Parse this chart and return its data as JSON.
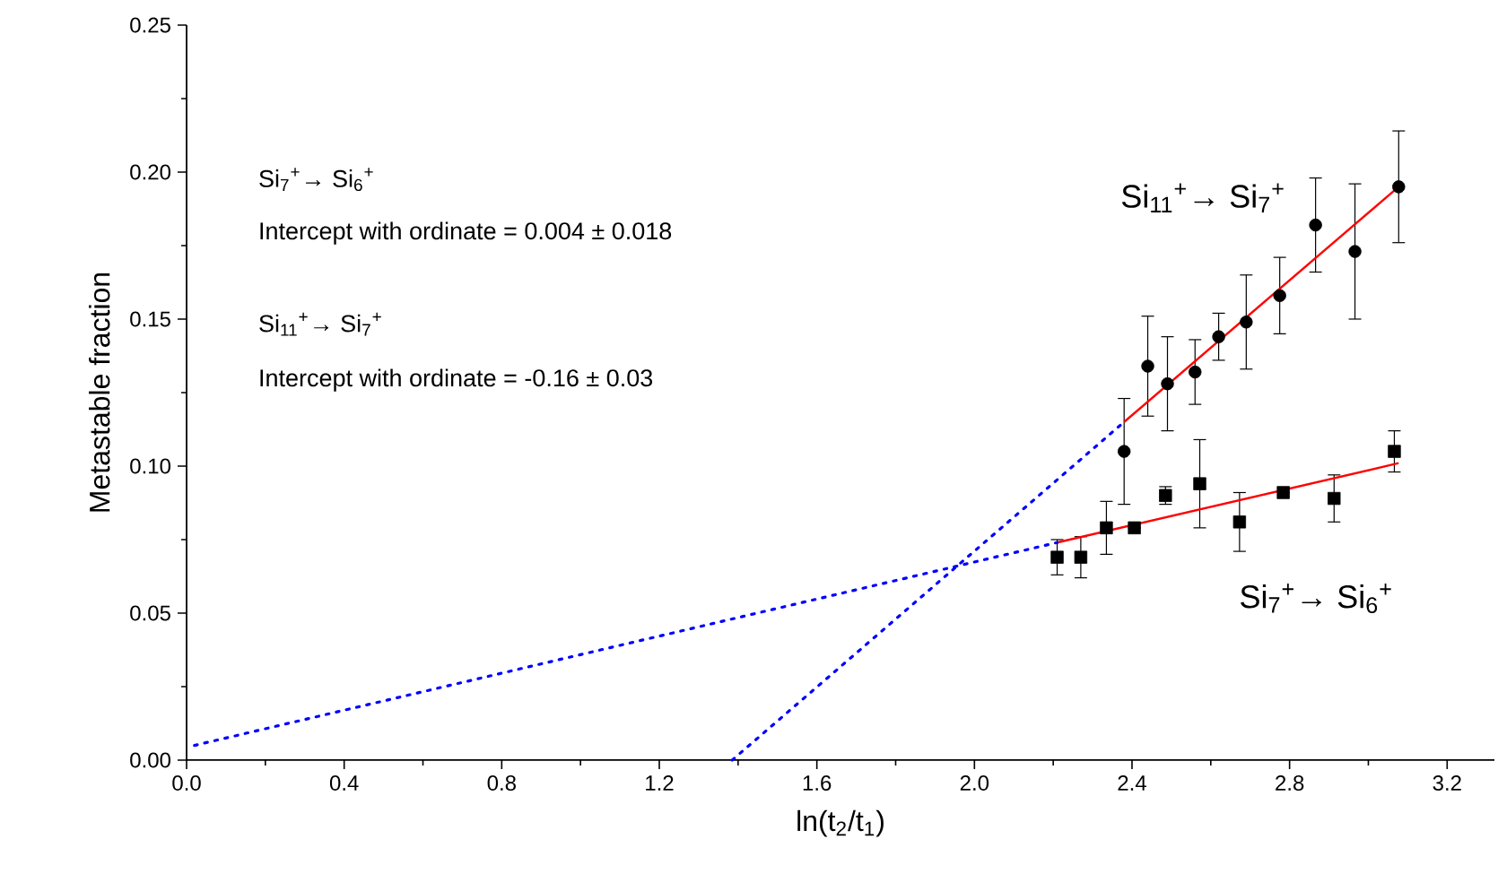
{
  "chart_data": {
    "type": "scatter",
    "xlabel": "ln(t$_{2}$/t$_{1}$)",
    "ylabel": "Metastable fraction",
    "xlim": [
      0,
      3.32
    ],
    "ylim": [
      0,
      0.25
    ],
    "xticks": [
      {
        "value": 0,
        "label": "0.0"
      },
      {
        "value": 0.4,
        "label": "0.4"
      },
      {
        "value": 0.8,
        "label": "0.8"
      },
      {
        "value": 1.2,
        "label": "1.2"
      },
      {
        "value": 1.6,
        "label": "1.6"
      },
      {
        "value": 2.0,
        "label": "2.0"
      },
      {
        "value": 2.4,
        "label": "2.4"
      },
      {
        "value": 2.8,
        "label": "2.8"
      },
      {
        "value": 3.2,
        "label": "3.2"
      }
    ],
    "yticks": [
      {
        "value": 0,
        "label": "0.00"
      },
      {
        "value": 0.05,
        "label": "0.05"
      },
      {
        "value": 0.1,
        "label": "0.10"
      },
      {
        "value": 0.15,
        "label": "0.15"
      },
      {
        "value": 0.2,
        "label": "0.20"
      },
      {
        "value": 0.25,
        "label": "0.25"
      }
    ],
    "grid": false,
    "annotations": [
      "Si$_{7}$$^{+}$→ Si$_{6}$$^{+}$",
      "Intercept with ordinate = 0.004 ± 0.018",
      "Si$_{11}$$^{+}$→ Si$_{7}$$^{+}$",
      "Intercept with ordinate = -0.16 ± 0.03"
    ],
    "series": [
      {
        "name": "Si$_{11}$$^{+}$→ Si$_{7}$$^{+}$",
        "marker": "circle",
        "color": "#000000",
        "x": [
          2.38,
          2.44,
          2.49,
          2.56,
          2.62,
          2.69,
          2.775,
          2.866,
          2.966,
          3.077
        ],
        "values": [
          0.105,
          0.134,
          0.128,
          0.132,
          0.144,
          0.149,
          0.158,
          0.182,
          0.173,
          0.195
        ],
        "errors": [
          0.018,
          0.017,
          0.016,
          0.011,
          0.008,
          0.016,
          0.013,
          0.016,
          0.023,
          0.019
        ]
      },
      {
        "name": "Si$_{7}$$^{+}$→ Si$_{6}$$^{+}$",
        "marker": "square",
        "color": "#000000",
        "x": [
          2.21,
          2.27,
          2.335,
          2.406,
          2.485,
          2.572,
          2.673,
          2.784,
          2.913,
          3.066
        ],
        "values": [
          0.069,
          0.069,
          0.079,
          0.079,
          0.09,
          0.094,
          0.081,
          0.091,
          0.089,
          0.105
        ],
        "errors": [
          0.006,
          0.007,
          0.009,
          null,
          0.003,
          0.015,
          0.01,
          null,
          0.008,
          0.007
        ]
      },
      {
        "type": "line",
        "line_style": "solid",
        "color": "#ff0000",
        "x": [
          2.38,
          3.077
        ],
        "values": [
          0.115,
          0.195
        ]
      },
      {
        "type": "line",
        "line_style": "dotted",
        "color": "#0000ff",
        "x": [
          1.385,
          2.38
        ],
        "values": [
          0,
          0.115
        ]
      },
      {
        "type": "line",
        "line_style": "solid",
        "color": "#ff0000",
        "x": [
          2.21,
          3.077
        ],
        "values": [
          0.074,
          0.101
        ]
      },
      {
        "type": "line",
        "line_style": "dotted",
        "color": "#0000ff",
        "x": [
          0.02,
          2.21
        ],
        "values": [
          0.005,
          0.074
        ]
      }
    ]
  }
}
